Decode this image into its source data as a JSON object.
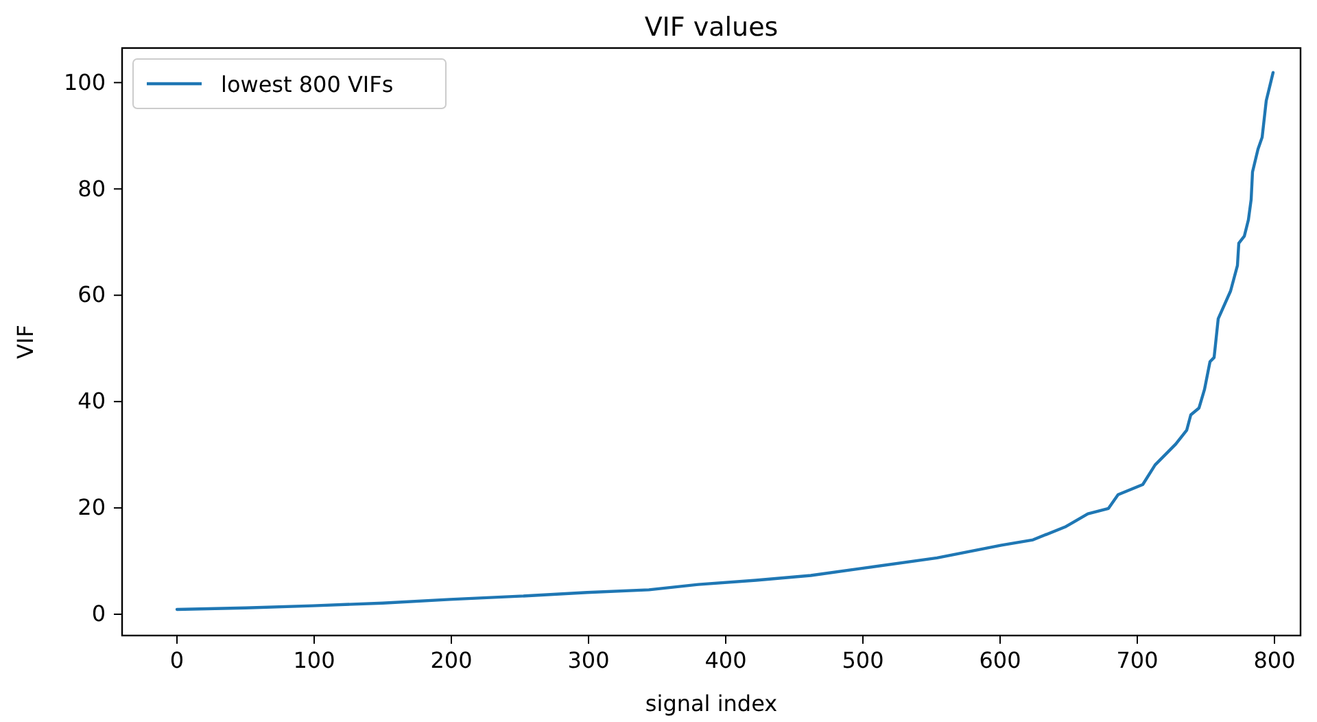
{
  "chart_data": {
    "type": "line",
    "title": "VIF values",
    "xlabel": "signal index",
    "ylabel": "VIF",
    "x": [
      0,
      50,
      99,
      150,
      199,
      250,
      299,
      344,
      380,
      422,
      462,
      501,
      554,
      601,
      624,
      648,
      664,
      679,
      686,
      704,
      713,
      728,
      736,
      739,
      745,
      749,
      753,
      756,
      759,
      768,
      773,
      774,
      778,
      781,
      783,
      784,
      788,
      791,
      794,
      799
    ],
    "series": [
      {
        "name": "lowest 800 VIFs",
        "color": "#1f77b4",
        "values": [
          0.9,
          1.2,
          1.6,
          2.1,
          2.8,
          3.4,
          4.1,
          4.6,
          5.6,
          6.4,
          7.3,
          8.7,
          10.6,
          13.0,
          14.0,
          16.5,
          18.9,
          19.9,
          22.5,
          24.4,
          28.1,
          32.0,
          34.6,
          37.5,
          38.8,
          42.3,
          47.5,
          48.3,
          55.6,
          60.8,
          65.6,
          69.8,
          71.1,
          74.2,
          78.0,
          83.2,
          87.5,
          89.7,
          96.6,
          101.9
        ]
      }
    ],
    "xlim": [
      -40,
      819
    ],
    "ylim": [
      -4,
      106.5
    ],
    "xticks": [
      0,
      100,
      200,
      300,
      400,
      500,
      600,
      700,
      800
    ],
    "yticks": [
      0,
      20,
      40,
      60,
      80,
      100
    ],
    "legend": "top left",
    "grid": false,
    "marker": "none",
    "line_style": "solid"
  }
}
